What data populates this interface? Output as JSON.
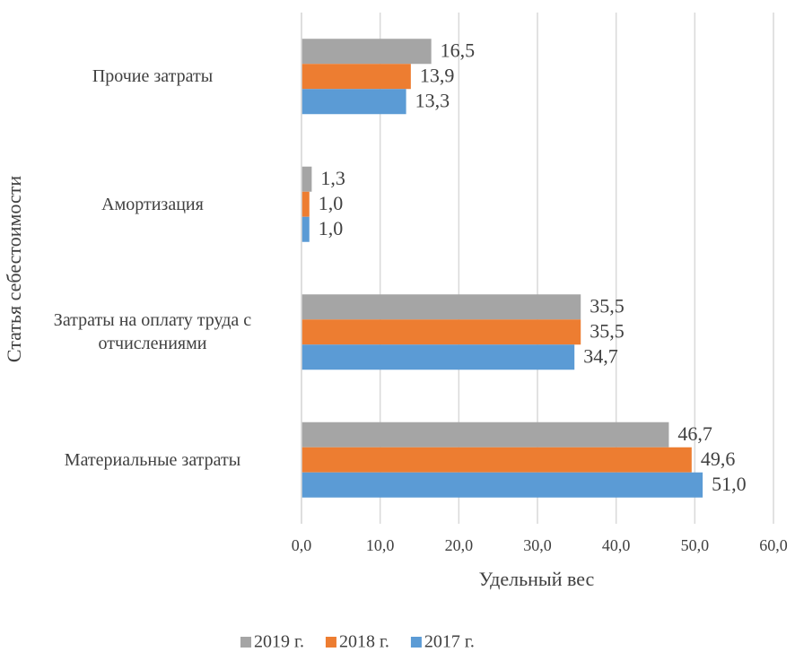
{
  "chart_data": {
    "type": "bar",
    "orientation": "horizontal",
    "x_label": "Удельный вес",
    "y_label": "Статья себестоимости",
    "categories": [
      "Материальные затраты",
      "Затраты на оплату труда с отчислениями",
      "Амортизация",
      "Прочие затраты"
    ],
    "series": [
      {
        "name": "2019 г.",
        "color": "#a5a5a5",
        "values": [
          46.7,
          35.5,
          1.3,
          16.5
        ],
        "value_labels": [
          "46,7",
          "35,5",
          "1,3",
          "16,5"
        ]
      },
      {
        "name": "2018 г.",
        "color": "#ed7d31",
        "values": [
          49.6,
          35.5,
          1.0,
          13.9
        ],
        "value_labels": [
          "49,6",
          "35,5",
          "1,0",
          "13,9"
        ]
      },
      {
        "name": "2017 г.",
        "color": "#5b9bd5",
        "values": [
          51.0,
          34.7,
          1.0,
          13.3
        ],
        "value_labels": [
          "51,0",
          "34,7",
          "1,0",
          "13,3"
        ]
      }
    ],
    "xlim": [
      0,
      60
    ],
    "xticks": [
      {
        "value": 0,
        "label": "0,0"
      },
      {
        "value": 10,
        "label": "10,0"
      },
      {
        "value": 20,
        "label": "20,0"
      },
      {
        "value": 30,
        "label": "30,0"
      },
      {
        "value": 40,
        "label": "40,0"
      },
      {
        "value": 50,
        "label": "50,0"
      },
      {
        "value": 60,
        "label": "60,0"
      }
    ],
    "grid": true,
    "legend": "bottom"
  }
}
